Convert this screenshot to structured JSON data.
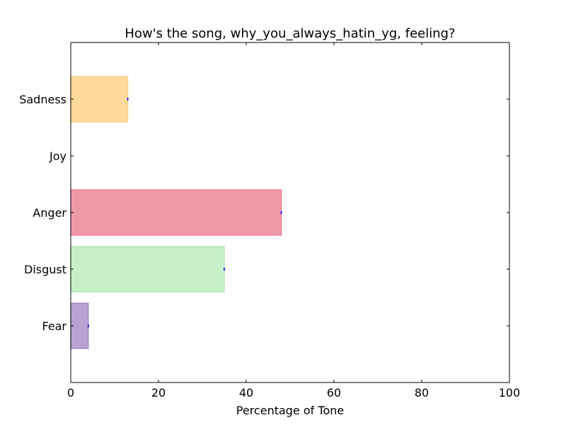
{
  "chart_data": {
    "type": "bar",
    "orientation": "horizontal",
    "title": "How's the song, why_you_always_hatin_yg, feeling?",
    "xlabel": "Percentage of Tone",
    "ylabel": "",
    "xlim": [
      0,
      100
    ],
    "xticks": [
      "0",
      "20",
      "40",
      "60",
      "80",
      "100"
    ],
    "categories": [
      "Fear",
      "Disgust",
      "Anger",
      "Joy",
      "Sadness"
    ],
    "values": [
      4,
      35,
      48,
      0,
      13
    ],
    "colors": [
      "#b9a2d3",
      "#c8f0c8",
      "#ee9aa6",
      "#fdd99b",
      "#fdd99b"
    ],
    "edge_colors": [
      "#9b7ec2",
      "#a6e4a6",
      "#e07488",
      "#f7cc7e",
      "#f7cc7e"
    ],
    "error_marker_color": "#0000ff",
    "grid": false,
    "legend": false
  }
}
